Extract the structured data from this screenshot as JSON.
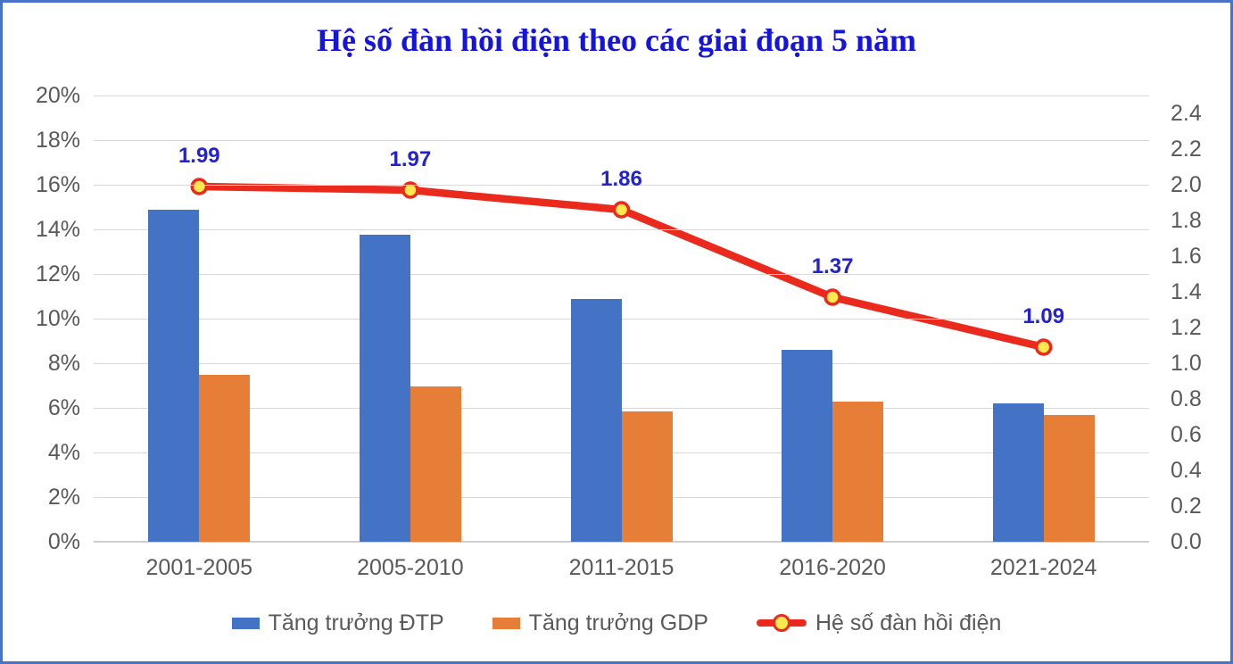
{
  "colors": {
    "frame_border": "#4a73c8",
    "title": "#1414dd",
    "bar_blue": "#4472c4",
    "bar_orange": "#e67e38",
    "line_red": "#ea2a1c",
    "marker_yellow": "#ffe94e",
    "data_label_blue": "#2222cf",
    "axis_text": "#595959",
    "gridline": "#d9d9d9"
  },
  "chart_data": {
    "type": "bar+line",
    "title": "Hệ số đàn hồi điện theo các giai đoạn 5 năm",
    "grid": true,
    "legend_position": "bottom",
    "categories": [
      "2001-2005",
      "2005-2010",
      "2011-2015",
      "2016-2020",
      "2021-2024"
    ],
    "series": [
      {
        "name": "Tăng trưởng ĐTP",
        "type": "bar",
        "axis": "left",
        "unit": "%",
        "color": "#4472c4",
        "values": [
          14.9,
          13.75,
          10.9,
          8.6,
          6.2
        ]
      },
      {
        "name": "Tăng trưởng GDP",
        "type": "bar",
        "axis": "left",
        "unit": "%",
        "color": "#e67e38",
        "values": [
          7.49,
          6.98,
          5.86,
          6.28,
          5.69
        ]
      },
      {
        "name": "Hệ số đàn hồi điện",
        "type": "line",
        "axis": "right",
        "color": "#ea2a1c",
        "marker_fill": "#ffe94e",
        "values": [
          1.99,
          1.97,
          1.86,
          1.37,
          1.09
        ],
        "point_labels": [
          "1.99",
          "1.97",
          "1.86",
          "1.37",
          "1.09"
        ]
      }
    ],
    "left_axis": {
      "min": 0,
      "max": 20,
      "ticks": [
        {
          "value": 0,
          "label": "0%"
        },
        {
          "value": 2,
          "label": "2%"
        },
        {
          "value": 4,
          "label": "4%"
        },
        {
          "value": 6,
          "label": "6%"
        },
        {
          "value": 8,
          "label": "8%"
        },
        {
          "value": 10,
          "label": "10%"
        },
        {
          "value": 12,
          "label": "12%"
        },
        {
          "value": 14,
          "label": "14%"
        },
        {
          "value": 16,
          "label": "16%"
        },
        {
          "value": 18,
          "label": "18%"
        },
        {
          "value": 20,
          "label": "20%"
        }
      ]
    },
    "right_axis": {
      "min": 0,
      "max": 2.5,
      "ticks": [
        {
          "value": 0.0,
          "label": "0.0"
        },
        {
          "value": 0.2,
          "label": "0.2"
        },
        {
          "value": 0.4,
          "label": "0.4"
        },
        {
          "value": 0.6,
          "label": "0.6"
        },
        {
          "value": 0.8,
          "label": "0.8"
        },
        {
          "value": 1.0,
          "label": "1.0"
        },
        {
          "value": 1.2,
          "label": "1.2"
        },
        {
          "value": 1.4,
          "label": "1.4"
        },
        {
          "value": 1.6,
          "label": "1.6"
        },
        {
          "value": 1.8,
          "label": "1.8"
        },
        {
          "value": 2.0,
          "label": "2.0"
        },
        {
          "value": 2.2,
          "label": "2.2"
        },
        {
          "value": 2.4,
          "label": "2.4"
        }
      ]
    }
  }
}
